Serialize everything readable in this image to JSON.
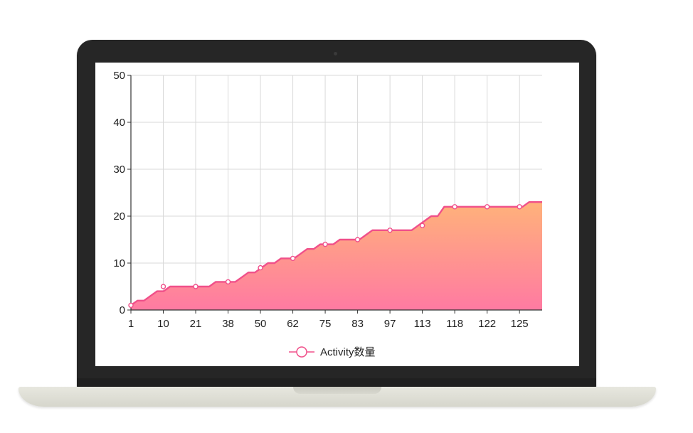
{
  "chart_data": {
    "type": "area",
    "categories": [
      "1",
      "10",
      "21",
      "38",
      "50",
      "62",
      "75",
      "83",
      "97",
      "113",
      "118",
      "122",
      "125"
    ],
    "series": [
      {
        "name": "Activity数量",
        "points": [
          [
            1,
            1
          ],
          [
            2,
            2
          ],
          [
            3,
            2
          ],
          [
            4,
            3
          ],
          [
            5,
            4
          ],
          [
            6,
            4
          ],
          [
            7,
            5
          ],
          [
            8,
            5
          ],
          [
            9,
            5
          ],
          [
            10,
            5
          ],
          [
            11,
            5
          ],
          [
            12,
            5
          ],
          [
            13,
            5
          ],
          [
            14,
            6
          ],
          [
            15,
            6
          ],
          [
            16,
            6
          ],
          [
            17,
            6
          ],
          [
            18,
            7
          ],
          [
            19,
            8
          ],
          [
            20,
            8
          ],
          [
            21,
            9
          ],
          [
            22,
            10
          ],
          [
            23,
            10
          ],
          [
            24,
            11
          ],
          [
            25,
            11
          ],
          [
            26,
            11
          ],
          [
            27,
            12
          ],
          [
            28,
            13
          ],
          [
            29,
            13
          ],
          [
            30,
            14
          ],
          [
            31,
            14
          ],
          [
            32,
            14
          ],
          [
            33,
            15
          ],
          [
            34,
            15
          ],
          [
            35,
            15
          ],
          [
            36,
            15
          ],
          [
            37,
            16
          ],
          [
            38,
            17
          ],
          [
            39,
            17
          ],
          [
            40,
            17
          ],
          [
            41,
            17
          ],
          [
            42,
            17
          ],
          [
            43,
            17
          ],
          [
            44,
            17
          ],
          [
            45,
            18
          ],
          [
            46,
            19
          ],
          [
            47,
            20
          ],
          [
            48,
            20
          ],
          [
            49,
            22
          ],
          [
            50,
            22
          ],
          [
            51,
            22
          ],
          [
            52,
            22
          ],
          [
            53,
            22
          ],
          [
            54,
            22
          ],
          [
            55,
            22
          ],
          [
            56,
            22
          ],
          [
            57,
            22
          ],
          [
            58,
            22
          ],
          [
            59,
            22
          ],
          [
            60,
            22
          ],
          [
            61,
            22
          ],
          [
            62,
            23
          ],
          [
            63,
            23
          ],
          [
            64,
            23
          ]
        ],
        "markers": [
          [
            1,
            1
          ],
          [
            11,
            5
          ],
          [
            21,
            5
          ],
          [
            31,
            6
          ],
          [
            41,
            9
          ],
          [
            51,
            11
          ],
          [
            61,
            14
          ],
          [
            71,
            15
          ],
          [
            81,
            17
          ],
          [
            91,
            18
          ],
          [
            101,
            22
          ],
          [
            111,
            22
          ],
          [
            121,
            22
          ]
        ]
      }
    ],
    "xlabel": "",
    "ylabel": "",
    "ylim": [
      0,
      50
    ],
    "yticks": [
      0,
      10,
      20,
      30,
      40,
      50
    ],
    "grid": true,
    "legend": "bottom-center",
    "colors": {
      "line": "#f0508a",
      "fill_top": "#ffb27a",
      "fill_bottom": "#ff7aa2",
      "grid": "#d9d9d9",
      "axis": "#333333"
    }
  }
}
